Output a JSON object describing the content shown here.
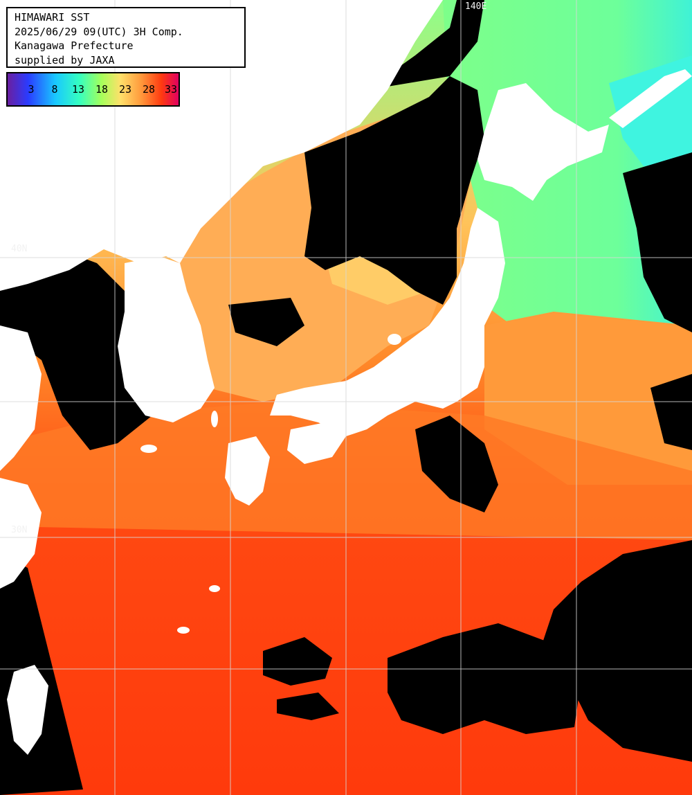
{
  "title": {
    "line1": "HIMAWARI SST",
    "line2": "2025/06/29 09(UTC) 3H Comp.",
    "line3": "Kanagawa Prefecture",
    "line4": "supplied by JAXA"
  },
  "legend": {
    "ticks": [
      "3",
      "8",
      "13",
      "18",
      "23",
      "28",
      "33"
    ],
    "unit_note": "",
    "gradient_colors": [
      "#6a1fa0",
      "#2a3cff",
      "#19c8ff",
      "#35ffc0",
      "#a6ff5a",
      "#ffe06a",
      "#ff9a3c",
      "#ff3a10",
      "#e00060"
    ]
  },
  "grid_labels": {
    "lat_40": "40N",
    "lon_top": "140E",
    "lat_30": "30N"
  },
  "colors": {
    "land": "#ffffff",
    "cloud": "#000000",
    "grid": "#d8d8d8",
    "sea_cold": "#7dff9a",
    "sea_cool": "#ffd36b",
    "sea_warm": "#ff8a2a",
    "sea_hot": "#ff3a10"
  }
}
